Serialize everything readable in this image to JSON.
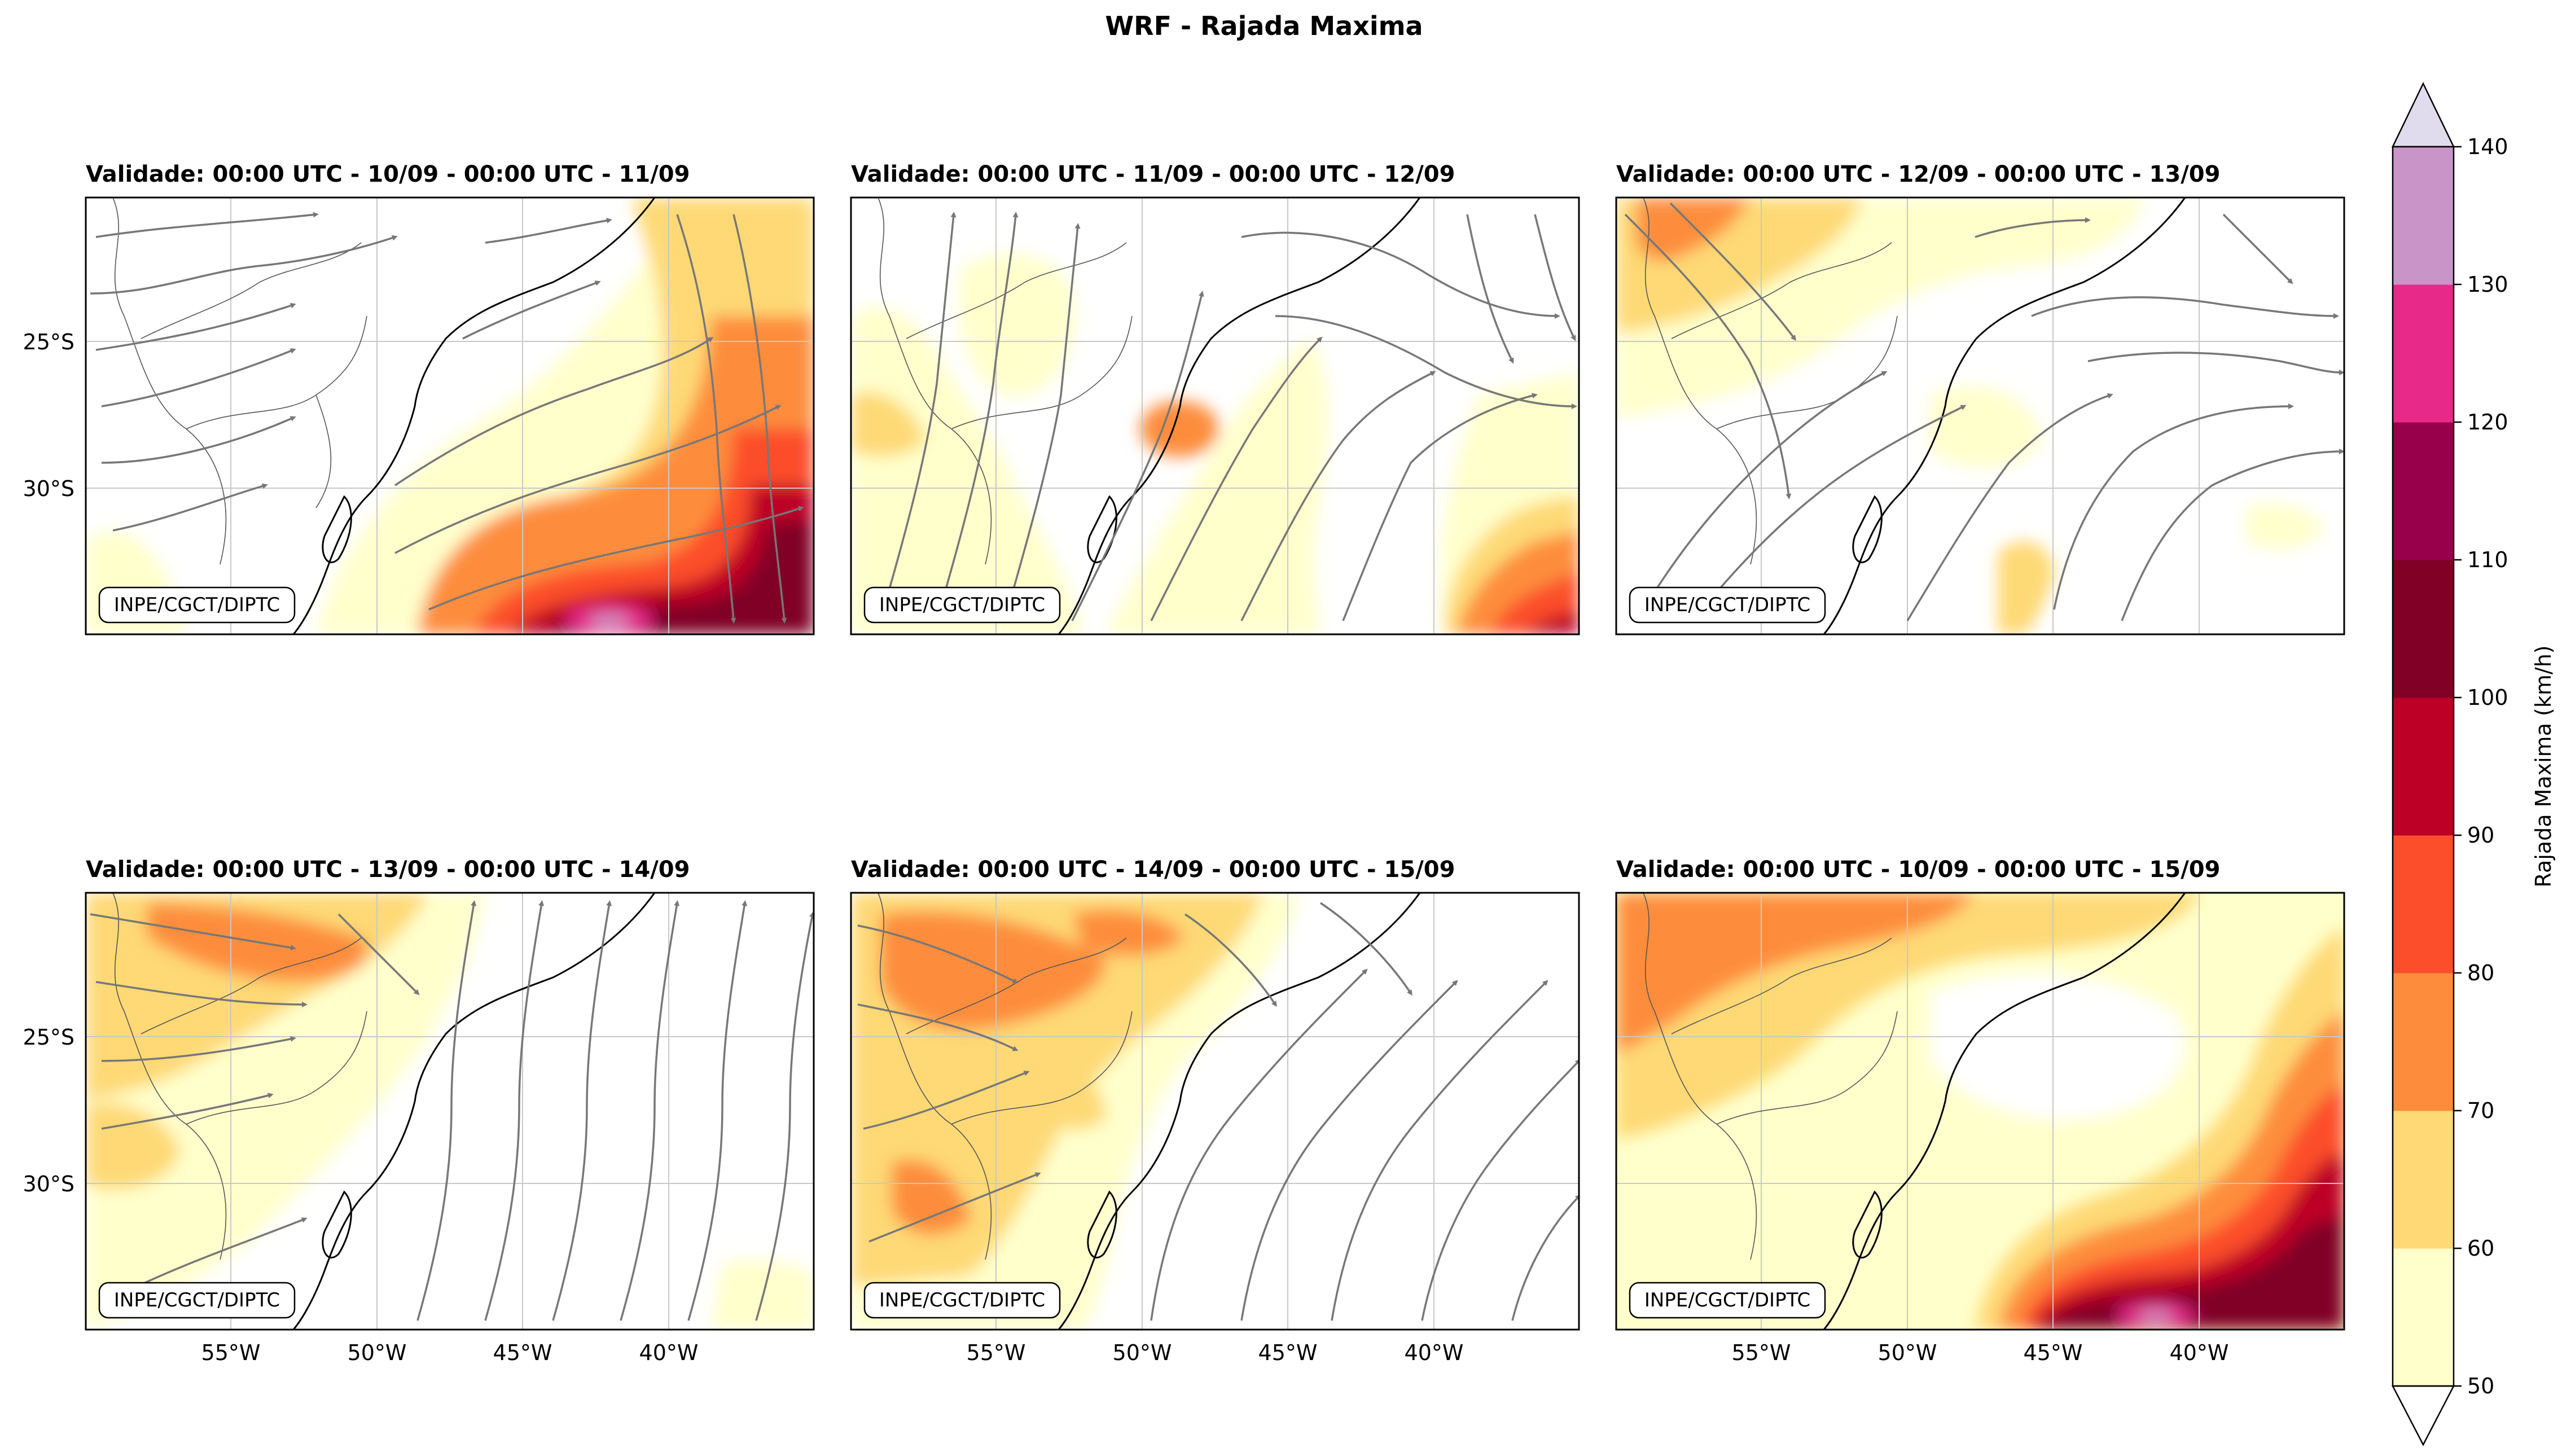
{
  "figure": {
    "title": "WRF - Rajada Maxima",
    "credit": "INPE/CGCT/DIPTC"
  },
  "axes": {
    "lat_ticks": [
      "25°S",
      "30°S"
    ],
    "lon_ticks": [
      "55°W",
      "50°W",
      "45°W",
      "40°W"
    ]
  },
  "panels": [
    {
      "id": 1,
      "title": "Validade: 00:00 UTC - 10/09 - 00:00 UTC - 11/09"
    },
    {
      "id": 2,
      "title": "Validade: 00:00 UTC - 11/09 - 00:00 UTC - 12/09"
    },
    {
      "id": 3,
      "title": "Validade: 00:00 UTC - 12/09 - 00:00 UTC - 13/09"
    },
    {
      "id": 4,
      "title": "Validade: 00:00 UTC - 13/09 - 00:00 UTC - 14/09"
    },
    {
      "id": 5,
      "title": "Validade: 00:00 UTC - 14/09 - 00:00 UTC - 15/09"
    },
    {
      "id": 6,
      "title": "Validade: 00:00 UTC - 10/09 - 00:00 UTC - 15/09"
    }
  ],
  "colorbar": {
    "label": "Rajada Maxima (km/h)",
    "ticks": [
      "50",
      "60",
      "70",
      "80",
      "90",
      "100",
      "110",
      "120",
      "130",
      "140"
    ],
    "colors": [
      "#ffffcc",
      "#fed976",
      "#fd8d3c",
      "#fc4e2a",
      "#bd0026",
      "#800026",
      "#99004c",
      "#e7298a",
      "#c994c7"
    ],
    "over_color": "#e1dced",
    "under_color": "#ffffff"
  },
  "colors": {
    "streamline": "#777777",
    "grid": "#c8c8c8"
  }
}
